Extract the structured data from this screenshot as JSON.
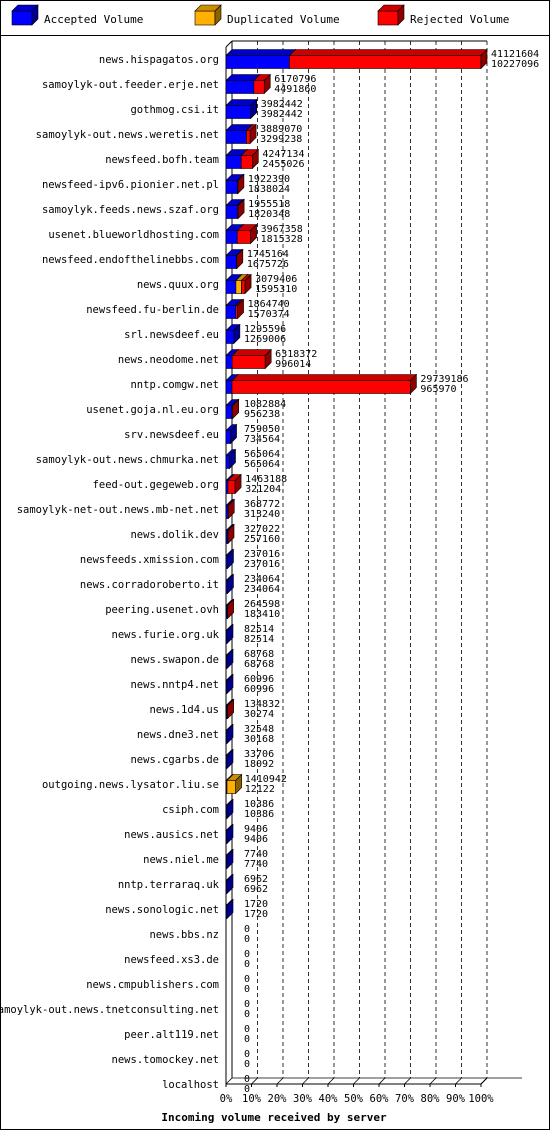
{
  "legend": {
    "accepted": "Accepted Volume",
    "duplicated": "Duplicated Volume",
    "rejected": "Rejected Volume"
  },
  "colors": {
    "accepted": "#0000ff",
    "duplicated": "#ffb000",
    "rejected": "#ff0000",
    "frame": "#000000",
    "grid": "#000000"
  },
  "chart_data": {
    "type": "bar",
    "orientation": "horizontal",
    "xlabel": "Incoming volume received by server",
    "ticks": [
      "0%",
      "10%",
      "20%",
      "30%",
      "40%",
      "50%",
      "60%",
      "70%",
      "80%",
      "90%",
      "100%"
    ],
    "xlim": [
      0,
      41121604
    ],
    "grid": true,
    "legend_position": "top",
    "rows": [
      {
        "server": "news.hispagatos.org",
        "total": 41121604,
        "accepted": 10227096,
        "duplicated": 0,
        "label_top": "41121604",
        "label_bottom": "10227096"
      },
      {
        "server": "samoylyk-out.feeder.erje.net",
        "total": 6170796,
        "accepted": 4491860,
        "duplicated": 0,
        "label_top": "6170796",
        "label_bottom": "4491860"
      },
      {
        "server": "gothmog.csi.it",
        "total": 3982442,
        "accepted": 3982442,
        "duplicated": 0,
        "label_top": "3982442",
        "label_bottom": "3982442"
      },
      {
        "server": "samoylyk-out.news.weretis.net",
        "total": 3889070,
        "accepted": 3299238,
        "duplicated": 0,
        "label_top": "3889070",
        "label_bottom": "3299238"
      },
      {
        "server": "newsfeed.bofh.team",
        "total": 4247134,
        "accepted": 2455026,
        "duplicated": 0,
        "label_top": "4247134",
        "label_bottom": "2455026"
      },
      {
        "server": "newsfeed-ipv6.pionier.net.pl",
        "total": 1922390,
        "accepted": 1838024,
        "duplicated": 0,
        "label_top": "1922390",
        "label_bottom": "1838024"
      },
      {
        "server": "samoylyk.feeds.news.szaf.org",
        "total": 1955518,
        "accepted": 1820348,
        "duplicated": 0,
        "label_top": "1955518",
        "label_bottom": "1820348"
      },
      {
        "server": "usenet.blueworldhosting.com",
        "total": 3967358,
        "accepted": 1815328,
        "duplicated": 0,
        "label_top": "3967358",
        "label_bottom": "1815328"
      },
      {
        "server": "newsfeed.endofthelinebbs.com",
        "total": 1745164,
        "accepted": 1675726,
        "duplicated": 0,
        "label_top": "1745164",
        "label_bottom": "1675726"
      },
      {
        "server": "news.quux.org",
        "total": 3079406,
        "accepted": 1595310,
        "duplicated": 900000,
        "label_top": "3079406",
        "label_bottom": "1595310"
      },
      {
        "server": "newsfeed.fu-berlin.de",
        "total": 1864740,
        "accepted": 1570374,
        "duplicated": 0,
        "label_top": "1864740",
        "label_bottom": "1570374"
      },
      {
        "server": "srl.newsdeef.eu",
        "total": 1295596,
        "accepted": 1269006,
        "duplicated": 0,
        "label_top": "1295596",
        "label_bottom": "1269006"
      },
      {
        "server": "news.neodome.net",
        "total": 6318372,
        "accepted": 996014,
        "duplicated": 0,
        "label_top": "6318372",
        "label_bottom": "996014"
      },
      {
        "server": "nntp.comgw.net",
        "total": 29739186,
        "accepted": 965970,
        "duplicated": 0,
        "label_top": "29739186",
        "label_bottom": "965970"
      },
      {
        "server": "usenet.goja.nl.eu.org",
        "total": 1082884,
        "accepted": 956238,
        "duplicated": 0,
        "label_top": "1082884",
        "label_bottom": "956238"
      },
      {
        "server": "srv.newsdeef.eu",
        "total": 759050,
        "accepted": 734564,
        "duplicated": 0,
        "label_top": "759050",
        "label_bottom": "734564"
      },
      {
        "server": "samoylyk-out.news.chmurka.net",
        "total": 565064,
        "accepted": 565064,
        "duplicated": 0,
        "label_top": "565064",
        "label_bottom": "565064"
      },
      {
        "server": "feed-out.gegeweb.org",
        "total": 1463188,
        "accepted": 321204,
        "duplicated": 0,
        "label_top": "1463188",
        "label_bottom": "321204"
      },
      {
        "server": "samoylyk-net-out.news.mb-net.net",
        "total": 368772,
        "accepted": 313240,
        "duplicated": 0,
        "label_top": "368772",
        "label_bottom": "313240"
      },
      {
        "server": "news.dolik.dev",
        "total": 327022,
        "accepted": 257160,
        "duplicated": 0,
        "label_top": "327022",
        "label_bottom": "257160"
      },
      {
        "server": "newsfeeds.xmission.com",
        "total": 237016,
        "accepted": 237016,
        "duplicated": 0,
        "label_top": "237016",
        "label_bottom": "237016"
      },
      {
        "server": "news.corradoroberto.it",
        "total": 234064,
        "accepted": 234064,
        "duplicated": 0,
        "label_top": "234064",
        "label_bottom": "234064"
      },
      {
        "server": "peering.usenet.ovh",
        "total": 264598,
        "accepted": 183410,
        "duplicated": 0,
        "label_top": "264598",
        "label_bottom": "183410"
      },
      {
        "server": "news.furie.org.uk",
        "total": 82514,
        "accepted": 82514,
        "duplicated": 0,
        "label_top": "82514",
        "label_bottom": "82514"
      },
      {
        "server": "news.swapon.de",
        "total": 68768,
        "accepted": 68768,
        "duplicated": 0,
        "label_top": "68768",
        "label_bottom": "68768"
      },
      {
        "server": "news.nntp4.net",
        "total": 60996,
        "accepted": 60996,
        "duplicated": 0,
        "label_top": "60996",
        "label_bottom": "60996"
      },
      {
        "server": "news.1d4.us",
        "total": 134832,
        "accepted": 30274,
        "duplicated": 0,
        "label_top": "134832",
        "label_bottom": "30274"
      },
      {
        "server": "news.dne3.net",
        "total": 32548,
        "accepted": 30168,
        "duplicated": 0,
        "label_top": "32548",
        "label_bottom": "30168"
      },
      {
        "server": "news.cgarbs.de",
        "total": 33706,
        "accepted": 18092,
        "duplicated": 0,
        "label_top": "33706",
        "label_bottom": "18092"
      },
      {
        "server": "outgoing.news.lysator.liu.se",
        "total": 1410942,
        "accepted": 12122,
        "duplicated": 1398820,
        "label_top": "1410942",
        "label_bottom": "12122"
      },
      {
        "server": "csiph.com",
        "total": 10386,
        "accepted": 10386,
        "duplicated": 0,
        "label_top": "10386",
        "label_bottom": "10386"
      },
      {
        "server": "news.ausics.net",
        "total": 9406,
        "accepted": 9406,
        "duplicated": 0,
        "label_top": "9406",
        "label_bottom": "9406"
      },
      {
        "server": "news.niel.me",
        "total": 7740,
        "accepted": 7740,
        "duplicated": 0,
        "label_top": "7740",
        "label_bottom": "7740"
      },
      {
        "server": "nntp.terraraq.uk",
        "total": 6962,
        "accepted": 6962,
        "duplicated": 0,
        "label_top": "6962",
        "label_bottom": "6962"
      },
      {
        "server": "news.sonologic.net",
        "total": 1720,
        "accepted": 1720,
        "duplicated": 0,
        "label_top": "1720",
        "label_bottom": "1720"
      },
      {
        "server": "news.bbs.nz",
        "total": 0,
        "accepted": 0,
        "duplicated": 0,
        "label_top": "0",
        "label_bottom": "0"
      },
      {
        "server": "newsfeed.xs3.de",
        "total": 0,
        "accepted": 0,
        "duplicated": 0,
        "label_top": "0",
        "label_bottom": "0"
      },
      {
        "server": "news.cmpublishers.com",
        "total": 0,
        "accepted": 0,
        "duplicated": 0,
        "label_top": "0",
        "label_bottom": "0"
      },
      {
        "server": "samoylyk-out.news.tnetconsulting.net",
        "total": 0,
        "accepted": 0,
        "duplicated": 0,
        "label_top": "0",
        "label_bottom": "0"
      },
      {
        "server": "peer.alt119.net",
        "total": 0,
        "accepted": 0,
        "duplicated": 0,
        "label_top": "0",
        "label_bottom": "0"
      },
      {
        "server": "news.tomockey.net",
        "total": 0,
        "accepted": 0,
        "duplicated": 0,
        "label_top": "0",
        "label_bottom": "0"
      },
      {
        "server": "localhost",
        "total": 0,
        "accepted": 0,
        "duplicated": 0,
        "label_top": "0",
        "label_bottom": "0"
      }
    ]
  }
}
